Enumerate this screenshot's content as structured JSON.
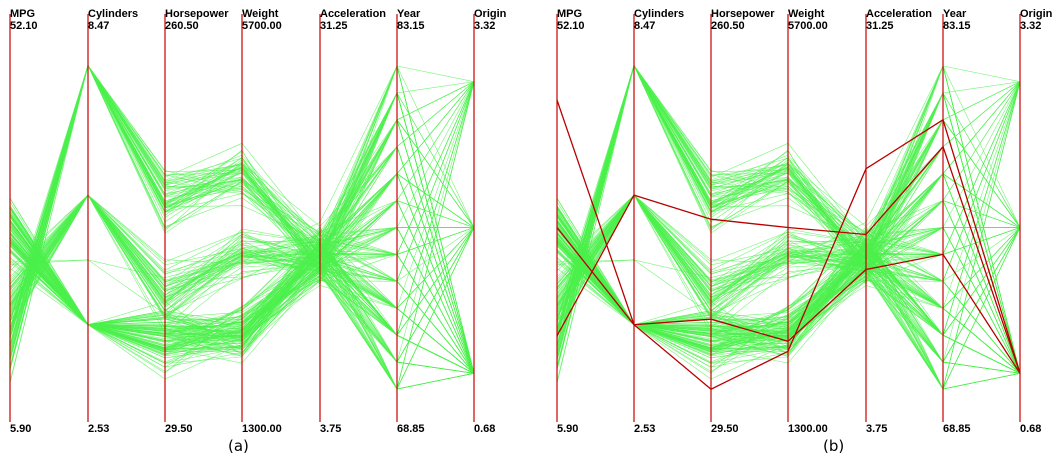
{
  "colors": {
    "polyline": "#4cf04c",
    "axis": "#c80000",
    "highlight": "#b80000",
    "background": "#ffffff",
    "text": "#000000"
  },
  "chart_data": [
    {
      "type": "parallel_coordinates",
      "caption": "(a)",
      "axes": [
        {
          "name": "MPG",
          "max": "52.10",
          "min": "5.90"
        },
        {
          "name": "Cylinders",
          "max": "8.47",
          "min": "2.53"
        },
        {
          "name": "Horsepower",
          "max": "260.50",
          "min": "29.50"
        },
        {
          "name": "Weight",
          "max": "5700.00",
          "min": "1300.00"
        },
        {
          "name": "Acceleration",
          "max": "31.25",
          "min": "3.75"
        },
        {
          "name": "Year",
          "max": "83.15",
          "min": "68.85"
        },
        {
          "name": "Origin",
          "max": "3.32",
          "min": "0.68"
        }
      ],
      "highlighted_series": []
    },
    {
      "type": "parallel_coordinates",
      "caption": "(b)",
      "axes": [
        {
          "name": "MPG",
          "max": "52.10",
          "min": "5.90"
        },
        {
          "name": "Cylinders",
          "max": "8.47",
          "min": "2.53"
        },
        {
          "name": "Horsepower",
          "max": "260.50",
          "min": "29.50"
        },
        {
          "name": "Weight",
          "max": "5700.00",
          "min": "1300.00"
        },
        {
          "name": "Acceleration",
          "max": "31.25",
          "min": "3.75"
        },
        {
          "name": "Year",
          "max": "83.15",
          "min": "68.85"
        },
        {
          "name": "Origin",
          "max": "3.32",
          "min": "0.68"
        }
      ],
      "highlighted_series": [
        {
          "values": [
            44.3,
            4,
            48,
            2085,
            21.7,
            80,
            1
          ]
        },
        {
          "values": [
            29.0,
            4,
            90,
            2200,
            14.5,
            75,
            1
          ]
        },
        {
          "values": [
            16.0,
            6,
            150,
            3500,
            17.0,
            79,
            1
          ]
        }
      ]
    }
  ]
}
